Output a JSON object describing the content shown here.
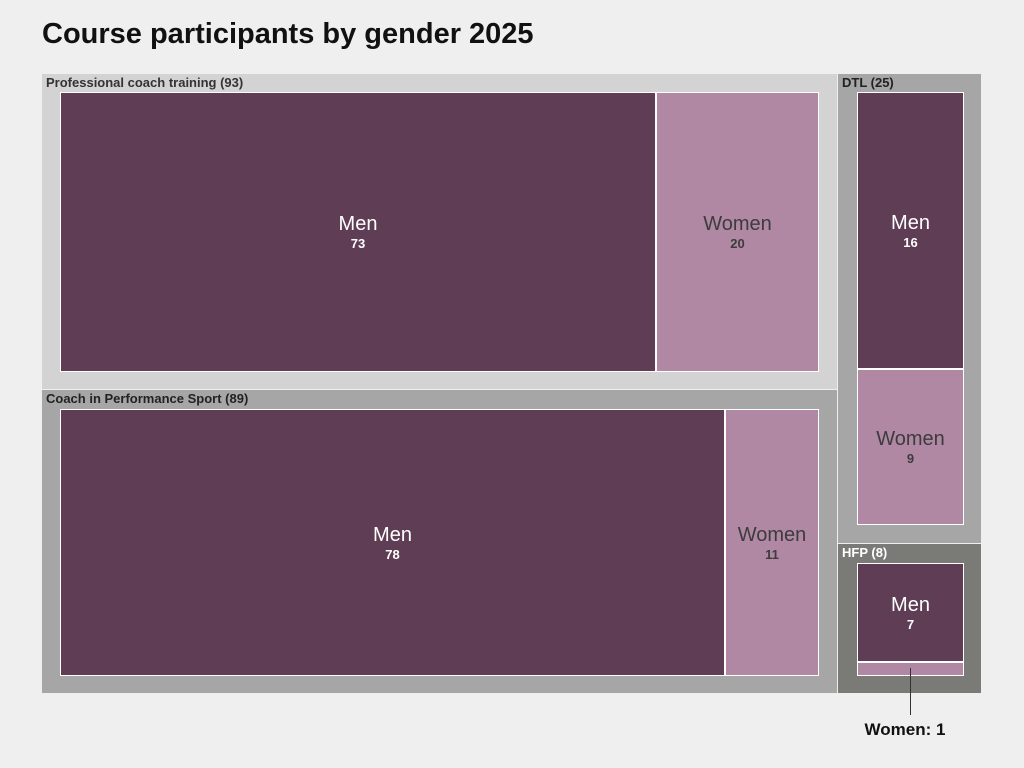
{
  "chart_data": {
    "type": "treemap",
    "title": "Course participants by gender 2025",
    "colors": {
      "Men": "#5e3d55",
      "Women": "#b088a3",
      "men_text": "#ffffff",
      "women_text": "#3c3c3c"
    },
    "groups": [
      {
        "name": "Professional coach training",
        "label": "Professional coach training (93)",
        "total": 93,
        "bg": "#d3d3d3",
        "label_color": "#333333",
        "children": [
          {
            "name": "Men",
            "value": 73
          },
          {
            "name": "Women",
            "value": 20
          }
        ]
      },
      {
        "name": "Coach in Performance Sport",
        "label": "Coach in Performance Sport (89)",
        "total": 89,
        "bg": "#a6a6a6",
        "label_color": "#222222",
        "children": [
          {
            "name": "Men",
            "value": 78
          },
          {
            "name": "Women",
            "value": 11
          }
        ]
      },
      {
        "name": "DTL",
        "label": "DTL (25)",
        "total": 25,
        "bg": "#a6a6a6",
        "label_color": "#222222",
        "children": [
          {
            "name": "Men",
            "value": 16
          },
          {
            "name": "Women",
            "value": 9
          }
        ]
      },
      {
        "name": "HFP",
        "label": "HFP (8)",
        "total": 8,
        "bg": "#7a7a77",
        "label_color": "#ffffff",
        "children": [
          {
            "name": "Men",
            "value": 7
          },
          {
            "name": "Women",
            "value": 1
          }
        ]
      }
    ],
    "annotation": {
      "text": "Women: 1",
      "group": "HFP",
      "child": "Women"
    }
  }
}
